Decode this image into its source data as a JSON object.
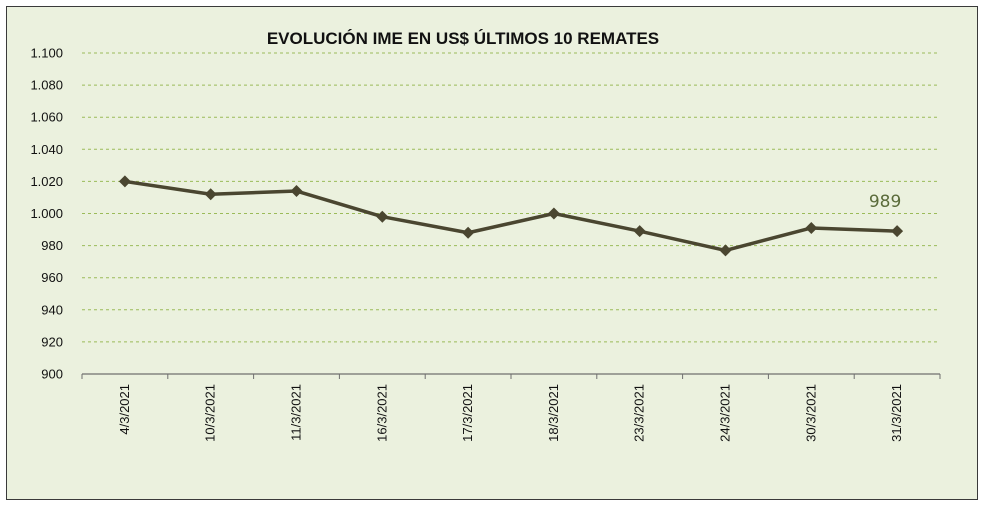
{
  "chart_data": {
    "type": "line",
    "title": "EVOLUCIÓN IME EN US$ ÚLTIMOS 10 REMATES",
    "xlabel": "",
    "ylabel": "",
    "categories": [
      "4/3/2021",
      "10/3/2021",
      "11/3/2021",
      "16/3/2021",
      "17/3/2021",
      "18/3/2021",
      "23/3/2021",
      "24/3/2021",
      "30/3/2021",
      "31/3/2021"
    ],
    "series": [
      {
        "values": [
          1020,
          1012,
          1014,
          998,
          988,
          1000,
          989,
          977,
          991,
          989
        ]
      }
    ],
    "ylim": [
      900,
      1100
    ],
    "yticks": [
      900,
      920,
      940,
      960,
      980,
      1000,
      1020,
      1040,
      1060,
      1080,
      1100
    ],
    "ytick_labels": [
      "900",
      "920",
      "940",
      "960",
      "980",
      "1.000",
      "1.020",
      "1.040",
      "1.060",
      "1.080",
      "1.100"
    ],
    "grid": true,
    "data_label": {
      "text": "989",
      "category": "31/3/2021"
    },
    "colors": {
      "line": "#4a4630",
      "marker": "#4a4630",
      "grid": "#9bbb59",
      "data_label": "#5a6b3a",
      "background": "#ebf1de"
    }
  }
}
